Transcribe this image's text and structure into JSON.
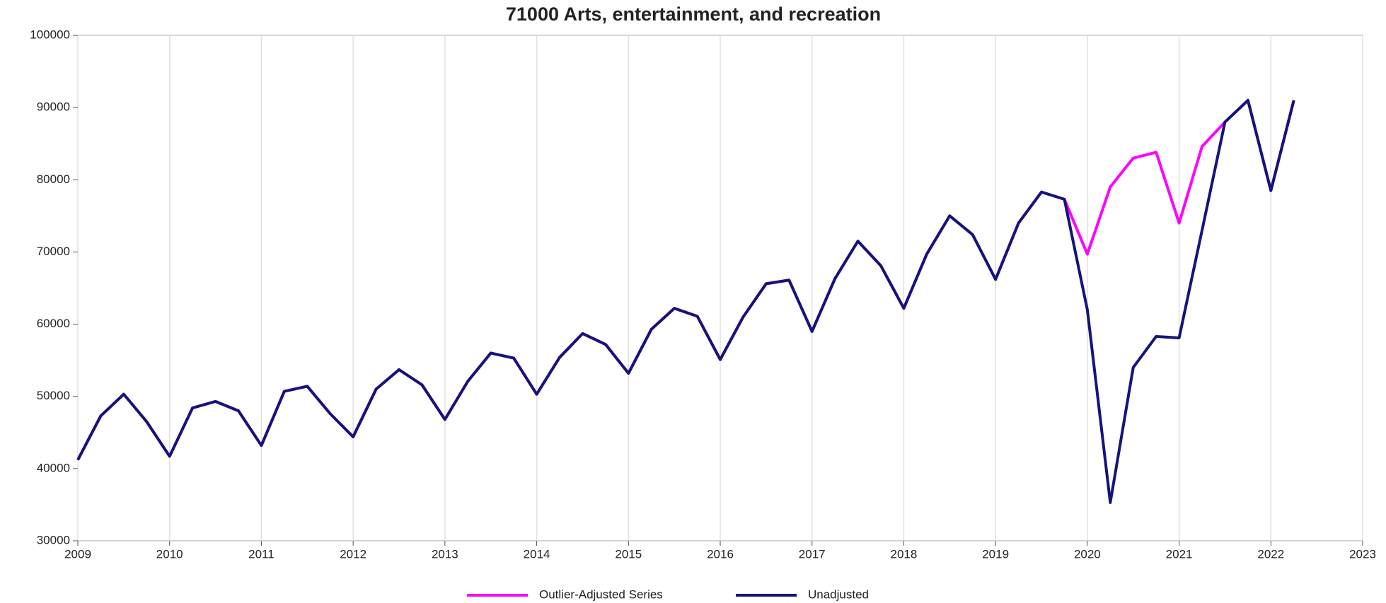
{
  "chart_data": {
    "type": "line",
    "title": "71000 Arts, entertainment, and recreation",
    "x": [
      2009,
      2009.25,
      2009.5,
      2009.75,
      2010,
      2010.25,
      2010.5,
      2010.75,
      2011,
      2011.25,
      2011.5,
      2011.75,
      2012,
      2012.25,
      2012.5,
      2012.75,
      2013,
      2013.25,
      2013.5,
      2013.75,
      2014,
      2014.25,
      2014.5,
      2014.75,
      2015,
      2015.25,
      2015.5,
      2015.75,
      2016,
      2016.25,
      2016.5,
      2016.75,
      2017,
      2017.25,
      2017.5,
      2017.75,
      2018,
      2018.25,
      2018.5,
      2018.75,
      2019,
      2019.25,
      2019.5,
      2019.75,
      2020,
      2020.25,
      2020.5,
      2020.75,
      2021,
      2021.25,
      2021.5,
      2021.75,
      2022,
      2022.25
    ],
    "series": [
      {
        "name": "Outlier-Adjusted Series",
        "color": "#ff00ff",
        "values": [
          41200,
          47300,
          50300,
          46500,
          41700,
          48400,
          49300,
          48000,
          43200,
          50700,
          51400,
          47600,
          44400,
          51000,
          53700,
          51600,
          46800,
          52100,
          56000,
          55300,
          50300,
          55400,
          58700,
          57200,
          53200,
          59300,
          62200,
          61100,
          55100,
          61000,
          65600,
          66100,
          59000,
          66300,
          71500,
          68100,
          62200,
          69700,
          75000,
          72400,
          66200,
          74000,
          78300,
          77300,
          69700,
          79000,
          83000,
          83800,
          74000,
          84600,
          88000,
          91000,
          78500,
          91000
        ]
      },
      {
        "name": "Unadjusted",
        "color": "#14147a",
        "values": [
          41200,
          47300,
          50300,
          46500,
          41700,
          48400,
          49300,
          48000,
          43200,
          50700,
          51400,
          47600,
          44400,
          51000,
          53700,
          51600,
          46800,
          52100,
          56000,
          55300,
          50300,
          55400,
          58700,
          57200,
          53200,
          59300,
          62200,
          61100,
          55100,
          61000,
          65600,
          66100,
          59000,
          66300,
          71500,
          68100,
          62200,
          69700,
          75000,
          72400,
          66200,
          74000,
          78300,
          77300,
          62000,
          35300,
          54000,
          58300,
          58100,
          73000,
          88000,
          91000,
          78500,
          91000
        ]
      }
    ],
    "xlim": [
      2009,
      2023
    ],
    "xticks": [
      2009,
      2010,
      2011,
      2012,
      2013,
      2014,
      2015,
      2016,
      2017,
      2018,
      2019,
      2020,
      2021,
      2022,
      2023
    ],
    "ylim": [
      30000,
      100000
    ],
    "yticks": [
      30000,
      40000,
      50000,
      60000,
      70000,
      80000,
      90000,
      100000
    ],
    "grid": true,
    "legend": "bottom"
  }
}
